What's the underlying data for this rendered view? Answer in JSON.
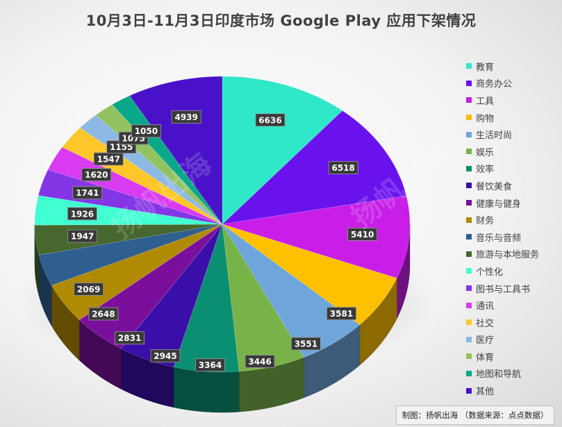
{
  "chart_data": {
    "type": "pie",
    "title": "10月3日-11月3日印度市场 Google Play 应用下架情况",
    "categories": [
      "教育",
      "商务办公",
      "工具",
      "购物",
      "生活时尚",
      "娱乐",
      "效率",
      "餐饮美食",
      "健康与健身",
      "财务",
      "音乐与音频",
      "旅游与本地服务",
      "个性化",
      "图书与工具书",
      "通讯",
      "社交",
      "医疗",
      "体育",
      "地图和导航",
      "其他"
    ],
    "values": [
      6636,
      6518,
      5410,
      3581,
      3551,
      3446,
      3364,
      2945,
      2831,
      2648,
      2069,
      1947,
      1926,
      1741,
      1620,
      1547,
      1155,
      1075,
      1050,
      4939
    ],
    "colors": [
      "#2ee8c8",
      "#6a12ee",
      "#c81ee8",
      "#ffc000",
      "#6ea6dc",
      "#78b34a",
      "#0b8f72",
      "#3a0ea8",
      "#7a0f9c",
      "#b08a00",
      "#2f5f8f",
      "#46672d",
      "#41ffd2",
      "#8436e6",
      "#d83bf2",
      "#ffc72a",
      "#8eb9e4",
      "#93c361",
      "#0aa88a",
      "#4a12c8"
    ],
    "legend_position": "right"
  },
  "watermark": "扬帆出海",
  "source": "制图：扬帆出海 （数据来源：点点数据）"
}
